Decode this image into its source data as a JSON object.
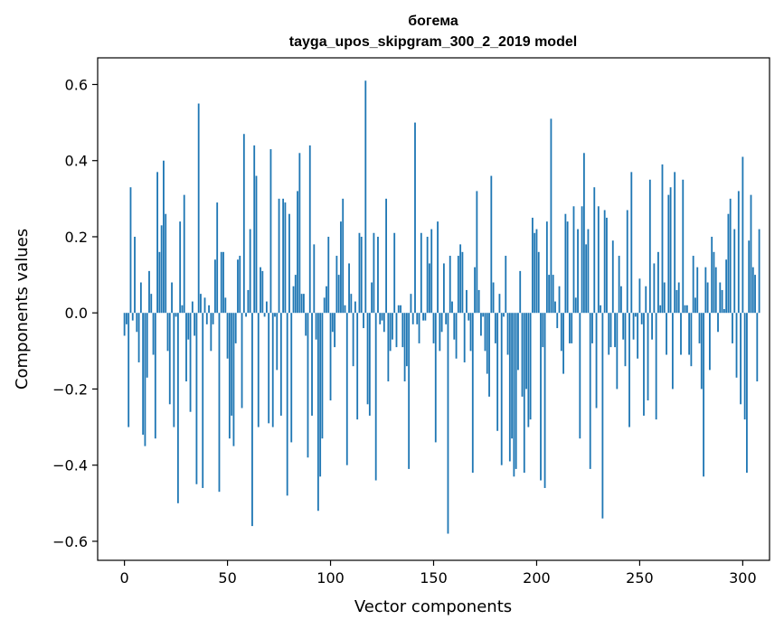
{
  "chart_data": {
    "type": "bar",
    "title": "богема",
    "subtitle": "tayga_upos_skipgram_300_2_2019 model",
    "xlabel": "Vector components",
    "ylabel": "Components values",
    "xlim": [
      -13,
      313
    ],
    "ylim": [
      -0.65,
      0.67
    ],
    "xticks": [
      0,
      50,
      100,
      150,
      200,
      250,
      300
    ],
    "yticks": [
      -0.6,
      -0.4,
      -0.2,
      0.0,
      0.2,
      0.4,
      0.6
    ],
    "ytick_labels": [
      "−0.6",
      "−0.4",
      "−0.2",
      "0.0",
      "0.2",
      "0.4",
      "0.6"
    ],
    "grid": false,
    "bar_color": "#1f77b4",
    "values": [
      -0.06,
      -0.03,
      -0.3,
      0.33,
      -0.02,
      0.2,
      -0.05,
      -0.13,
      0.08,
      -0.32,
      -0.35,
      -0.17,
      0.11,
      0.05,
      -0.11,
      -0.33,
      0.37,
      0.16,
      0.23,
      0.4,
      0.26,
      -0.1,
      -0.24,
      0.08,
      -0.3,
      -0.01,
      -0.5,
      0.24,
      0.02,
      0.31,
      -0.18,
      -0.07,
      -0.26,
      0.03,
      -0.06,
      -0.45,
      0.55,
      0.05,
      -0.46,
      0.04,
      -0.03,
      0.02,
      -0.1,
      -0.03,
      0.14,
      0.29,
      -0.47,
      0.16,
      0.16,
      0.04,
      -0.12,
      -0.33,
      -0.27,
      -0.35,
      -0.08,
      0.14,
      0.15,
      -0.25,
      0.47,
      -0.01,
      0.06,
      0.22,
      -0.56,
      0.44,
      0.36,
      -0.3,
      0.12,
      0.11,
      -0.01,
      0.03,
      -0.29,
      0.43,
      -0.3,
      -0.01,
      -0.15,
      0.3,
      -0.27,
      0.3,
      0.29,
      -0.48,
      0.26,
      -0.34,
      0.07,
      0.1,
      0.32,
      0.42,
      0.05,
      0.05,
      -0.06,
      -0.38,
      0.44,
      -0.27,
      0.18,
      -0.07,
      -0.52,
      -0.43,
      -0.33,
      0.04,
      0.07,
      0.2,
      -0.23,
      -0.05,
      -0.09,
      0.15,
      0.1,
      0.24,
      0.3,
      0.02,
      -0.4,
      0.13,
      0.05,
      -0.14,
      0.03,
      -0.28,
      0.21,
      0.2,
      -0.04,
      0.61,
      -0.24,
      -0.27,
      0.08,
      0.21,
      -0.44,
      0.2,
      -0.03,
      -0.02,
      -0.05,
      0.3,
      -0.18,
      -0.1,
      -0.07,
      0.21,
      -0.09,
      0.02,
      0.02,
      -0.09,
      -0.18,
      -0.14,
      -0.41,
      0.05,
      -0.03,
      0.5,
      -0.03,
      -0.08,
      0.21,
      -0.02,
      -0.02,
      0.2,
      0.13,
      0.22,
      -0.08,
      -0.34,
      0.24,
      -0.1,
      -0.05,
      0.13,
      -0.03,
      -0.58,
      0.15,
      0.03,
      -0.07,
      -0.12,
      0.15,
      0.18,
      0.16,
      -0.13,
      0.06,
      -0.02,
      -0.1,
      -0.42,
      0.12,
      0.32,
      0.06,
      -0.06,
      -0.01,
      -0.1,
      -0.16,
      -0.22,
      0.36,
      0.08,
      -0.08,
      -0.31,
      0.05,
      -0.4,
      -0.01,
      0.15,
      -0.11,
      -0.39,
      -0.33,
      -0.43,
      -0.41,
      -0.15,
      0.11,
      -0.22,
      -0.42,
      -0.2,
      -0.3,
      -0.28,
      0.25,
      0.21,
      0.22,
      0.16,
      -0.44,
      -0.09,
      -0.46,
      0.24,
      0.1,
      0.51,
      0.1,
      0.03,
      -0.04,
      0.07,
      -0.1,
      -0.16,
      0.26,
      0.24,
      -0.08,
      -0.08,
      0.28,
      0.04,
      0.22,
      -0.33,
      0.28,
      0.42,
      0.18,
      0.22,
      -0.41,
      -0.08,
      0.33,
      -0.25,
      0.28,
      0.02,
      -0.54,
      0.27,
      0.25,
      -0.11,
      -0.09,
      0.19,
      -0.09,
      -0.2,
      0.15,
      0.07,
      -0.07,
      -0.14,
      0.27,
      -0.3,
      0.37,
      -0.07,
      -0.01,
      -0.12,
      0.09,
      -0.03,
      -0.27,
      0.07,
      -0.23,
      0.35,
      -0.07,
      0.13,
      -0.28,
      0.16,
      0.02,
      0.39,
      0.08,
      -0.11,
      0.31,
      0.33,
      -0.2,
      0.37,
      0.06,
      0.08,
      -0.11,
      0.35,
      0.02,
      0.02,
      -0.11,
      -0.14,
      0.15,
      0.04,
      0.12,
      -0.08,
      -0.2,
      -0.43,
      0.12,
      0.08,
      -0.15,
      0.2,
      0.16,
      0.12,
      -0.05,
      0.08,
      0.06,
      0.01,
      0.14,
      0.26,
      0.3,
      -0.08,
      0.22,
      -0.17,
      0.32,
      -0.24,
      0.41,
      -0.28,
      -0.42,
      0.19,
      0.31,
      0.12,
      0.1,
      -0.18,
      0.22
    ]
  }
}
